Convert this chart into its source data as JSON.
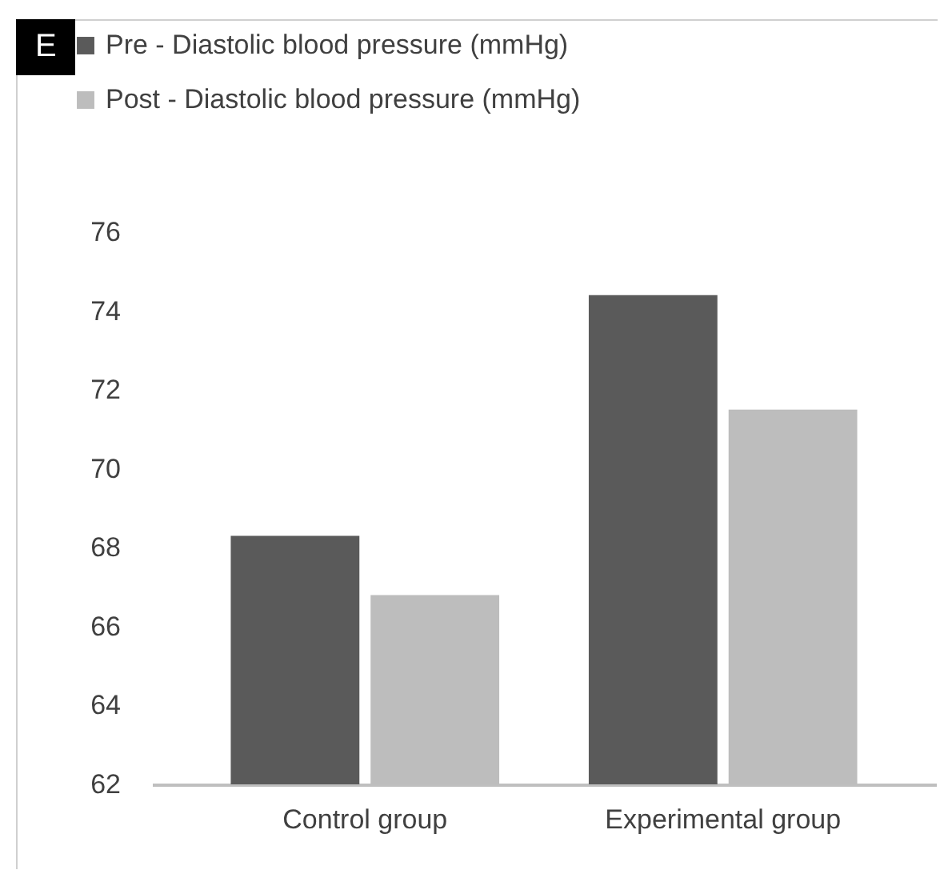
{
  "chart_data": {
    "type": "bar",
    "annotations": [
      "E"
    ],
    "categories": [
      "Control group",
      "Experimental group"
    ],
    "series": [
      {
        "name": "Pre - Diastolic blood pressure (mmHg)",
        "color": "#5a5a5a",
        "values": [
          68.3,
          74.4
        ]
      },
      {
        "name": "Post - Diastolic blood pressure (mmHg)",
        "color": "#bdbdbd",
        "values": [
          66.8,
          71.5
        ]
      }
    ],
    "ylim": [
      62,
      76
    ],
    "yticks": [
      62,
      64,
      66,
      68,
      70,
      72,
      74,
      76
    ],
    "grid": false,
    "legend": "top left"
  }
}
